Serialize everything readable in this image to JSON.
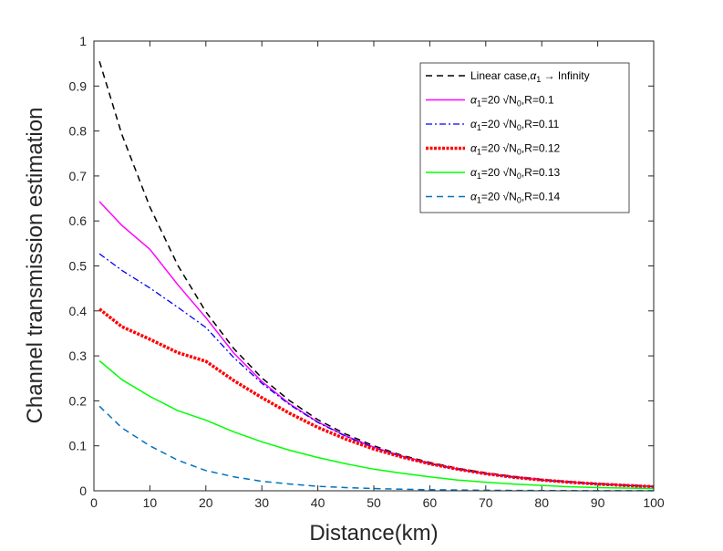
{
  "chart_data": {
    "type": "line",
    "title": "",
    "xlabel": "Distance(km)",
    "ylabel": "Channel transmission estimation",
    "xlim": [
      0,
      100
    ],
    "ylim": [
      0,
      1
    ],
    "xticks": [
      "0",
      "10",
      "20",
      "30",
      "40",
      "50",
      "60",
      "70",
      "80",
      "90",
      "100"
    ],
    "yticks": [
      "0",
      "0.1",
      "0.2",
      "0.3",
      "0.4",
      "0.5",
      "0.6",
      "0.7",
      "0.8",
      "0.9",
      "1"
    ],
    "grid": false,
    "legend_position": "top-right",
    "series": [
      {
        "name": "Linear case,α1 → Infinity",
        "legend_parts": [
          "Linear case,",
          "α",
          "1",
          " → Infinity"
        ],
        "color": "#000000",
        "style": "dashed",
        "x": [
          1,
          5,
          10,
          15,
          20,
          25,
          30,
          35,
          40,
          45,
          50,
          55,
          60,
          65,
          70,
          75,
          80,
          85,
          90,
          95,
          100
        ],
        "values": [
          0.955,
          0.792,
          0.631,
          0.501,
          0.398,
          0.316,
          0.251,
          0.2,
          0.158,
          0.126,
          0.1,
          0.079,
          0.063,
          0.05,
          0.04,
          0.032,
          0.025,
          0.02,
          0.016,
          0.013,
          0.01
        ]
      },
      {
        "name": "α1=20 √N0,R=0.1",
        "legend_parts": [
          "α",
          "1",
          "=20 √N",
          "0",
          ",R=0.1"
        ],
        "color": "#ff00ff",
        "style": "solid",
        "x": [
          1,
          5,
          10,
          15,
          20,
          25,
          30,
          35,
          40,
          45,
          50,
          55,
          60,
          65,
          70,
          75,
          80,
          85,
          90,
          95,
          100
        ],
        "values": [
          0.643,
          0.59,
          0.537,
          0.458,
          0.385,
          0.306,
          0.243,
          0.193,
          0.153,
          0.122,
          0.097,
          0.077,
          0.061,
          0.048,
          0.038,
          0.031,
          0.024,
          0.019,
          0.015,
          0.012,
          0.01
        ]
      },
      {
        "name": "α1=20 √N0,R=0.11",
        "legend_parts": [
          "α",
          "1",
          "=20 √N",
          "0",
          ",R=0.11"
        ],
        "color": "#0000ff",
        "style": "dashdot",
        "x": [
          1,
          5,
          10,
          15,
          20,
          25,
          30,
          35,
          40,
          45,
          50,
          55,
          60,
          65,
          70,
          75,
          80,
          85,
          90,
          95,
          100
        ],
        "values": [
          0.527,
          0.49,
          0.451,
          0.408,
          0.363,
          0.296,
          0.239,
          0.191,
          0.152,
          0.121,
          0.096,
          0.076,
          0.06,
          0.048,
          0.038,
          0.03,
          0.024,
          0.019,
          0.015,
          0.012,
          0.009
        ]
      },
      {
        "name": "α1=20 √N0,R=0.12",
        "legend_parts": [
          "α",
          "1",
          "=20 √N",
          "0",
          ",R=0.12"
        ],
        "color": "#ff0000",
        "style": "dotted-thick",
        "x": [
          1,
          5,
          10,
          15,
          20,
          25,
          30,
          35,
          40,
          45,
          50,
          55,
          60,
          65,
          70,
          75,
          80,
          85,
          90,
          95,
          100
        ],
        "values": [
          0.404,
          0.365,
          0.337,
          0.307,
          0.288,
          0.245,
          0.207,
          0.172,
          0.141,
          0.115,
          0.093,
          0.075,
          0.06,
          0.048,
          0.038,
          0.03,
          0.024,
          0.019,
          0.015,
          0.012,
          0.009
        ]
      },
      {
        "name": "α1=20 √N0,R=0.13",
        "legend_parts": [
          "α",
          "1",
          "=20 √N",
          "0",
          ",R=0.13"
        ],
        "color": "#00ff00",
        "style": "solid",
        "x": [
          1,
          5,
          10,
          15,
          20,
          25,
          30,
          35,
          40,
          45,
          50,
          55,
          60,
          65,
          70,
          75,
          80,
          85,
          90,
          95,
          100
        ],
        "values": [
          0.289,
          0.247,
          0.21,
          0.178,
          0.157,
          0.131,
          0.109,
          0.09,
          0.074,
          0.06,
          0.048,
          0.039,
          0.031,
          0.024,
          0.019,
          0.015,
          0.012,
          0.009,
          0.007,
          0.006,
          0.005
        ]
      },
      {
        "name": "α1=20 √N0,R=0.14",
        "legend_parts": [
          "α",
          "1",
          "=20 √N",
          "0",
          ",R=0.14"
        ],
        "color": "#0072bd",
        "style": "dashed",
        "x": [
          1,
          5,
          10,
          15,
          20,
          25,
          30,
          35,
          40,
          45,
          50,
          55,
          60,
          65,
          70,
          75,
          80,
          85,
          90,
          95,
          100
        ],
        "values": [
          0.188,
          0.14,
          0.1,
          0.068,
          0.045,
          0.031,
          0.021,
          0.015,
          0.01,
          0.007,
          0.005,
          0.0035,
          0.0025,
          0.0018,
          0.0013,
          0.0009,
          0.0006,
          0.0005,
          0.0003,
          0.0002,
          0.0002
        ]
      }
    ]
  }
}
